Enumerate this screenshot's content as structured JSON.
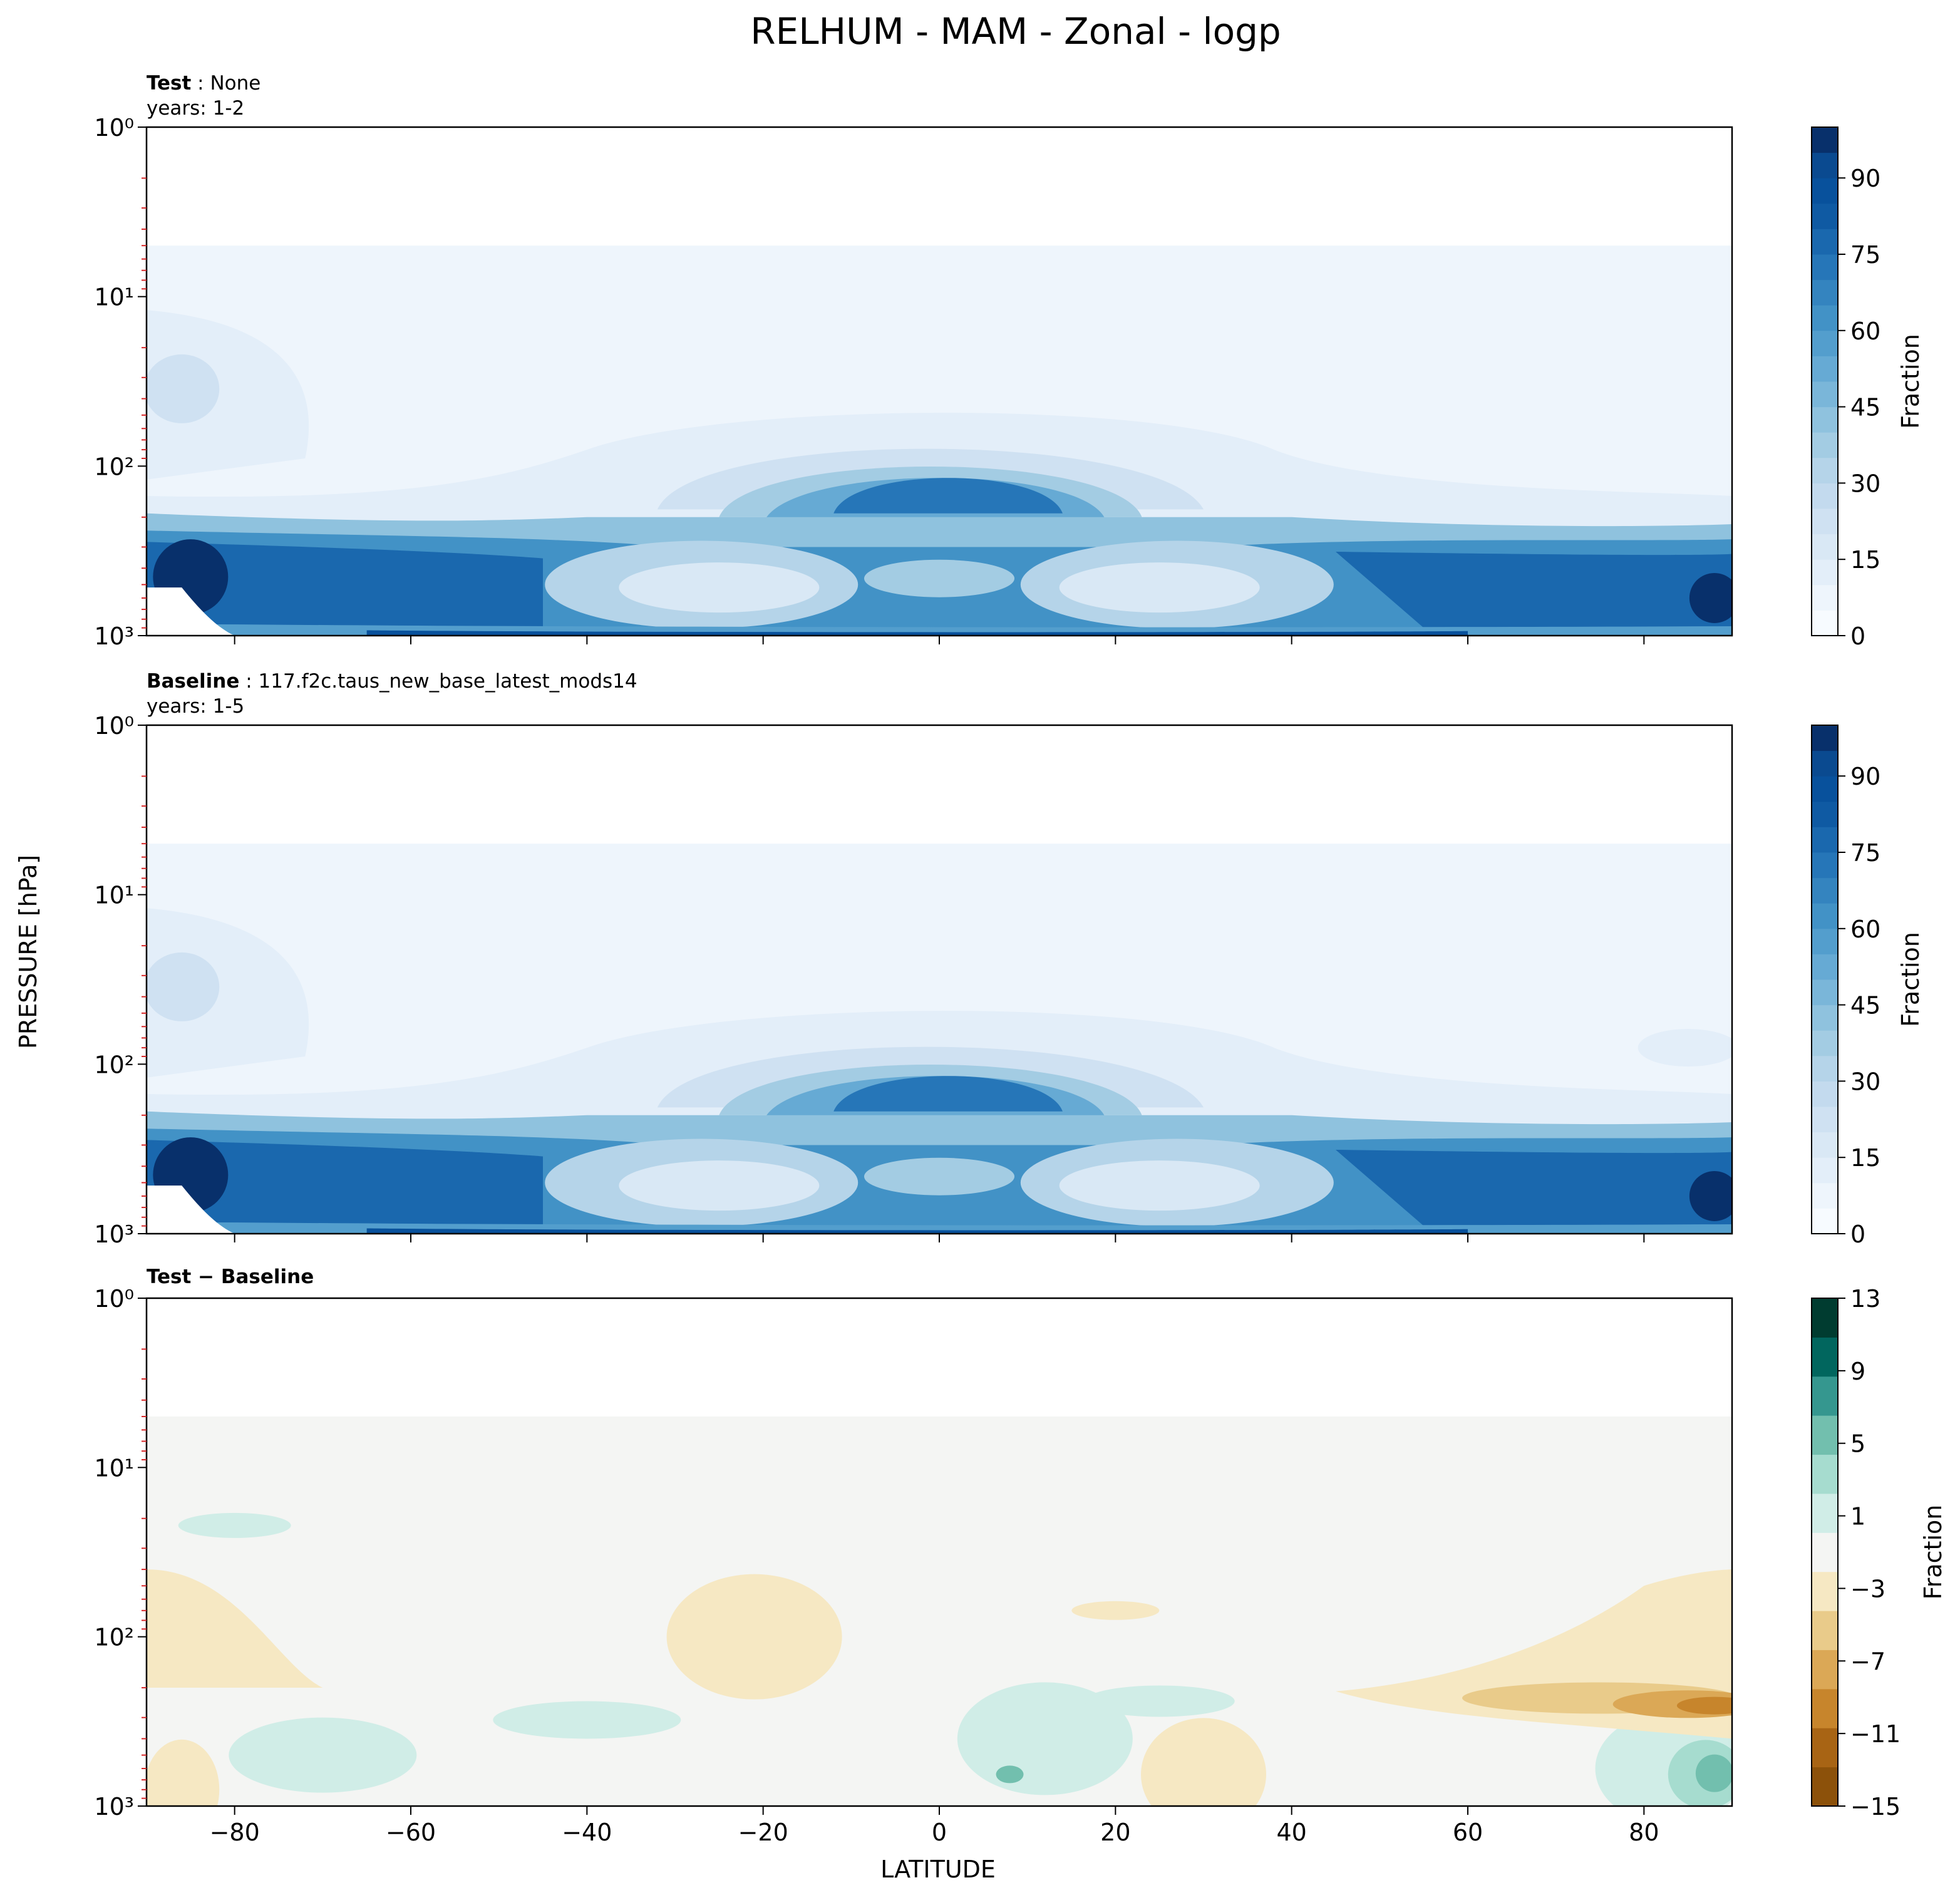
{
  "title": "RELHUM - MAM - Zonal - logp",
  "shared_axes": {
    "xlabel": "LATITUDE",
    "ylabel": "PRESSURE [hPa]"
  },
  "colors": {
    "blues": [
      "#f7fbff",
      "#eef5fc",
      "#e3eef9",
      "#d9e8f5",
      "#cfe1f2",
      "#c3daee",
      "#b5d4e9",
      "#a3cce3",
      "#8fc2de",
      "#7ab6d9",
      "#66aad4",
      "#539ecd",
      "#4292c6",
      "#3484bf",
      "#2676b8",
      "#1a68ae",
      "#0f5aa3",
      "#08519c",
      "#0a4a90",
      "#08306b"
    ],
    "diff_neg": [
      "#8c510a",
      "#a86414",
      "#c7852c",
      "#dba856",
      "#e9cb8a",
      "#f6e8c3"
    ],
    "diff_mid": "#f4f5f3",
    "diff_pos": [
      "#d0ede7",
      "#a6dccf",
      "#72bfae",
      "#35978f",
      "#01665e",
      "#003c30"
    ]
  },
  "chart_data": [
    {
      "type": "contour",
      "panel": "test",
      "label_bold": "Test",
      "label_rest": " : None",
      "years": "years: 1-2",
      "x": [
        -90,
        90
      ],
      "xticks": [
        -80,
        -60,
        -40,
        -20,
        0,
        20,
        40,
        60,
        80
      ],
      "yscale": "log",
      "ylim": [
        1000,
        1
      ],
      "yticks": [
        "10⁰",
        "10¹",
        "10²",
        "10³"
      ],
      "colorbar": {
        "label": "Fraction",
        "min": 0,
        "max": 100,
        "ticks": [
          "0",
          "15",
          "30",
          "45",
          "60",
          "75",
          "90"
        ]
      },
      "features": [
        {
          "desc": "moist lower troposphere",
          "lat": [
            -90,
            90
          ],
          "p": [
            200,
            1000
          ],
          "value": 75
        },
        {
          "desc": "tropical upper-troposphere maximum",
          "lat": [
            -10,
            18
          ],
          "p": [
            100,
            200
          ],
          "value": 85
        },
        {
          "desc": "dry subtropical lower",
          "lat": [
            -30,
            30
          ],
          "p": [
            400,
            800
          ],
          "value": 35
        },
        {
          "desc": "upper atmosphere",
          "lat": [
            -90,
            90
          ],
          "p": [
            1,
            50
          ],
          "value": 2
        }
      ]
    },
    {
      "type": "contour",
      "panel": "baseline",
      "label_bold": "Baseline",
      "label_rest": " : 117.f2c.taus_new_base_latest_mods14",
      "years": "years: 1-5",
      "x": [
        -90,
        90
      ],
      "xticks": [
        -80,
        -60,
        -40,
        -20,
        0,
        20,
        40,
        60,
        80
      ],
      "yscale": "log",
      "ylim": [
        1000,
        1
      ],
      "yticks": [
        "10⁰",
        "10¹",
        "10²",
        "10³"
      ],
      "colorbar": {
        "label": "Fraction",
        "min": 0,
        "max": 100,
        "ticks": [
          "0",
          "15",
          "30",
          "45",
          "60",
          "75",
          "90"
        ]
      }
    },
    {
      "type": "contour",
      "panel": "difference",
      "label_bold": "Test − Baseline",
      "x": [
        -90,
        90
      ],
      "xticks": [
        -80,
        -60,
        -40,
        -20,
        0,
        20,
        40,
        60,
        80
      ],
      "yscale": "log",
      "ylim": [
        1000,
        1
      ],
      "yticks": [
        "10⁰",
        "10¹",
        "10²",
        "10³"
      ],
      "colorbar": {
        "label": "Fraction",
        "min": -15,
        "max": 13,
        "ticks": [
          "−15",
          "−11",
          "−7",
          "−3",
          "1",
          "5",
          "9",
          "13"
        ]
      },
      "features": [
        {
          "desc": "negative band near 200 hPa, high northern latitudes",
          "lat": [
            48,
            90
          ],
          "p": [
            150,
            300
          ],
          "value": -7
        },
        {
          "desc": "positive near surface, 85N",
          "lat": [
            80,
            90
          ],
          "p": [
            500,
            800
          ],
          "value": 5
        }
      ]
    }
  ]
}
